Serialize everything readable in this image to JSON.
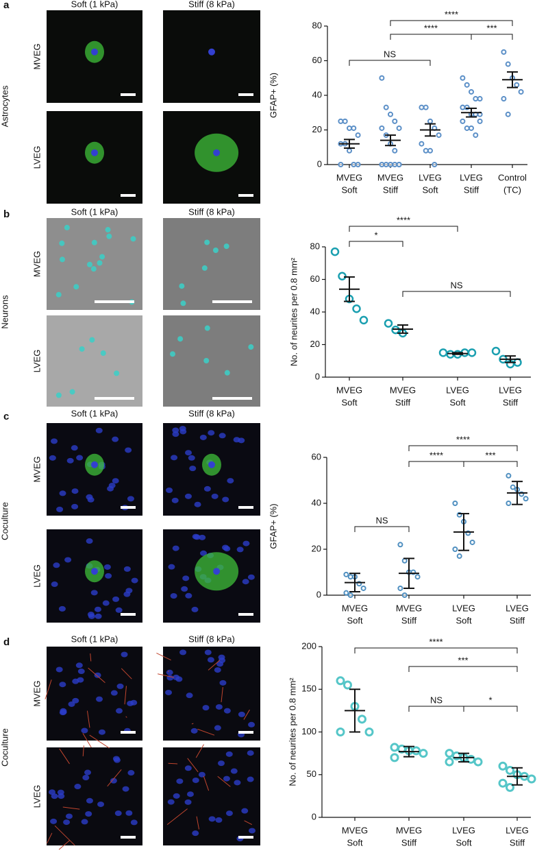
{
  "panels": [
    {
      "label": "a",
      "side_label": "Astrocytes",
      "columns": [
        "Soft (1 kPa)",
        "Stiff (8 kPa)"
      ],
      "rows": [
        "MVEG",
        "LVEG"
      ]
    },
    {
      "label": "b",
      "side_label": "Neurons",
      "columns": [
        "Soft (1 kPa)",
        "Stiff (8 kPa)"
      ],
      "rows": [
        "MVEG",
        "LVEG"
      ]
    },
    {
      "label": "c",
      "side_label": "Coculture",
      "columns": [
        "Soft (1 kPa)",
        "Stiff (8 kPa)"
      ],
      "rows": [
        "MVEG",
        "LVEG"
      ]
    },
    {
      "label": "d",
      "side_label": "Coculture",
      "columns": [
        "Soft (1 kPa)",
        "Stiff (8 kPa)"
      ],
      "rows": [
        "MVEG",
        "LVEG"
      ]
    }
  ],
  "chart_data": [
    {
      "type": "strip",
      "y_label": "GFAP+ (%)",
      "categories": [
        [
          "MVEG",
          "Soft"
        ],
        [
          "MVEG",
          "Stiff"
        ],
        [
          "LVEG",
          "Soft"
        ],
        [
          "LVEG",
          "Stiff"
        ],
        [
          "Control",
          "(TC)"
        ]
      ],
      "points": [
        [
          25,
          25,
          21,
          21,
          17,
          12,
          12,
          8,
          0,
          0,
          0
        ],
        [
          50,
          33,
          29,
          25,
          21,
          21,
          17,
          12,
          8,
          0,
          0,
          0,
          0,
          0,
          0
        ],
        [
          33,
          33,
          25,
          21,
          17,
          12,
          8,
          8,
          0
        ],
        [
          50,
          46,
          42,
          38,
          38,
          33,
          33,
          29,
          29,
          25,
          25,
          21,
          21,
          17,
          29,
          33
        ],
        [
          65,
          58,
          50,
          46,
          42,
          38,
          29
        ]
      ],
      "means": [
        12,
        14,
        20,
        30,
        49
      ],
      "errors": [
        2.5,
        3,
        3.5,
        2.5,
        4.5
      ],
      "color": "#5b8fc7",
      "ylim": [
        0,
        80
      ],
      "yticks": [
        0,
        20,
        40,
        60,
        80
      ],
      "annotations": [
        "NS",
        "****",
        "***",
        "****"
      ]
    },
    {
      "type": "strip",
      "y_label": "No. of neurites per 0.8 mm²",
      "categories": [
        [
          "MVEG",
          "Soft"
        ],
        [
          "MVEG",
          "Stiff"
        ],
        [
          "LVEG",
          "Soft"
        ],
        [
          "LVEG",
          "Stiff"
        ]
      ],
      "points": [
        [
          77,
          62,
          48,
          42,
          35
        ],
        [
          33,
          29,
          27
        ],
        [
          15,
          14,
          14,
          15,
          15
        ],
        [
          16,
          11,
          8,
          9
        ]
      ],
      "means": [
        54,
        29.5,
        14.5,
        11
      ],
      "errors": [
        7.5,
        2.5,
        0.5,
        2
      ],
      "color": "#1a9fb0",
      "ylim": [
        0,
        80
      ],
      "yticks": [
        0,
        20,
        40,
        60,
        80
      ],
      "annotations": [
        "*",
        "****",
        "NS"
      ]
    },
    {
      "type": "strip",
      "y_label": "GFAP+ (%)",
      "categories": [
        [
          "MVEG",
          "Soft"
        ],
        [
          "MVEG",
          "Stiff"
        ],
        [
          "LVEG",
          "Soft"
        ],
        [
          "LVEG",
          "Stiff"
        ]
      ],
      "points": [
        [
          9,
          8,
          8,
          5,
          3,
          1,
          0
        ],
        [
          22,
          15,
          10,
          10,
          8,
          3,
          0
        ],
        [
          40,
          35,
          32,
          27,
          23,
          20,
          17
        ],
        [
          52,
          47,
          46,
          44,
          42,
          40
        ]
      ],
      "means": [
        5.5,
        9.5,
        27.5,
        44.5
      ],
      "errors": [
        4,
        6.5,
        8,
        5
      ],
      "color": "#4f8fc0",
      "ylim": [
        0,
        60
      ],
      "yticks": [
        0,
        20,
        40,
        60
      ],
      "annotations": [
        "NS",
        "****",
        "***",
        "****"
      ]
    },
    {
      "type": "strip",
      "y_label": "No. of neurites per 0.8 mm²",
      "categories": [
        [
          "MVEG",
          "Soft"
        ],
        [
          "MVEG",
          "Stiff"
        ],
        [
          "LVEG",
          "Soft"
        ],
        [
          "LVEG",
          "Stiff"
        ]
      ],
      "points": [
        [
          160,
          155,
          130,
          115,
          100,
          100
        ],
        [
          82,
          80,
          78,
          78,
          75,
          70
        ],
        [
          75,
          72,
          70,
          68,
          65,
          65
        ],
        [
          60,
          55,
          50,
          48,
          45,
          40,
          35
        ]
      ],
      "means": [
        125,
        77,
        70,
        48
      ],
      "errors": [
        25,
        6,
        5,
        10
      ],
      "color": "#55c6c8",
      "ylim": [
        0,
        200
      ],
      "yticks": [
        0,
        50,
        100,
        150,
        200
      ],
      "annotations": [
        "****",
        "***",
        "NS",
        "*"
      ]
    }
  ]
}
